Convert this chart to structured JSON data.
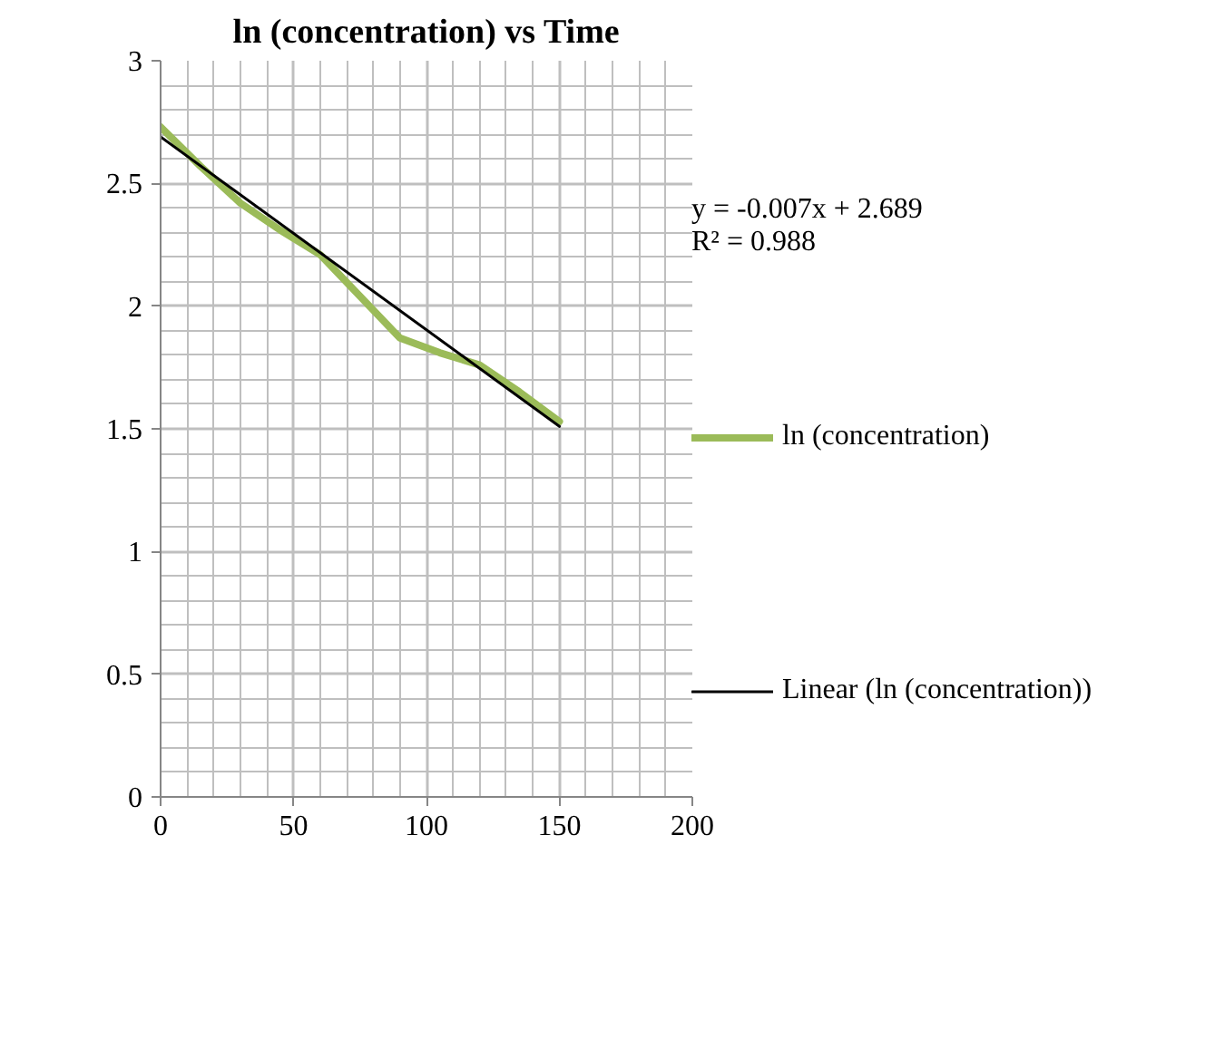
{
  "chart_data": {
    "type": "line",
    "title": "ln (concentration) vs Time",
    "xlim": [
      0,
      200
    ],
    "xticks": [
      0,
      50,
      100,
      150,
      200
    ],
    "ylim": [
      0,
      3
    ],
    "yticks": [
      0,
      0.5,
      1,
      1.5,
      2,
      2.5,
      3
    ],
    "grid": true,
    "legend": "right",
    "annotations": [
      "y = -0.007x + 2.689",
      "R² = 0.988"
    ],
    "series": [
      {
        "name": "ln (concentration)",
        "color": "#9bbb59",
        "x": [
          0,
          15,
          30,
          45,
          60,
          75,
          90,
          105,
          120,
          135,
          150
        ],
        "values": [
          2.73,
          2.57,
          2.42,
          2.31,
          2.21,
          2.04,
          1.87,
          1.81,
          1.76,
          1.65,
          1.53
        ]
      },
      {
        "name": "Linear (ln (concentration))",
        "color": "#000000",
        "x": [
          0,
          150
        ],
        "values": [
          2.69,
          1.51
        ]
      }
    ]
  }
}
